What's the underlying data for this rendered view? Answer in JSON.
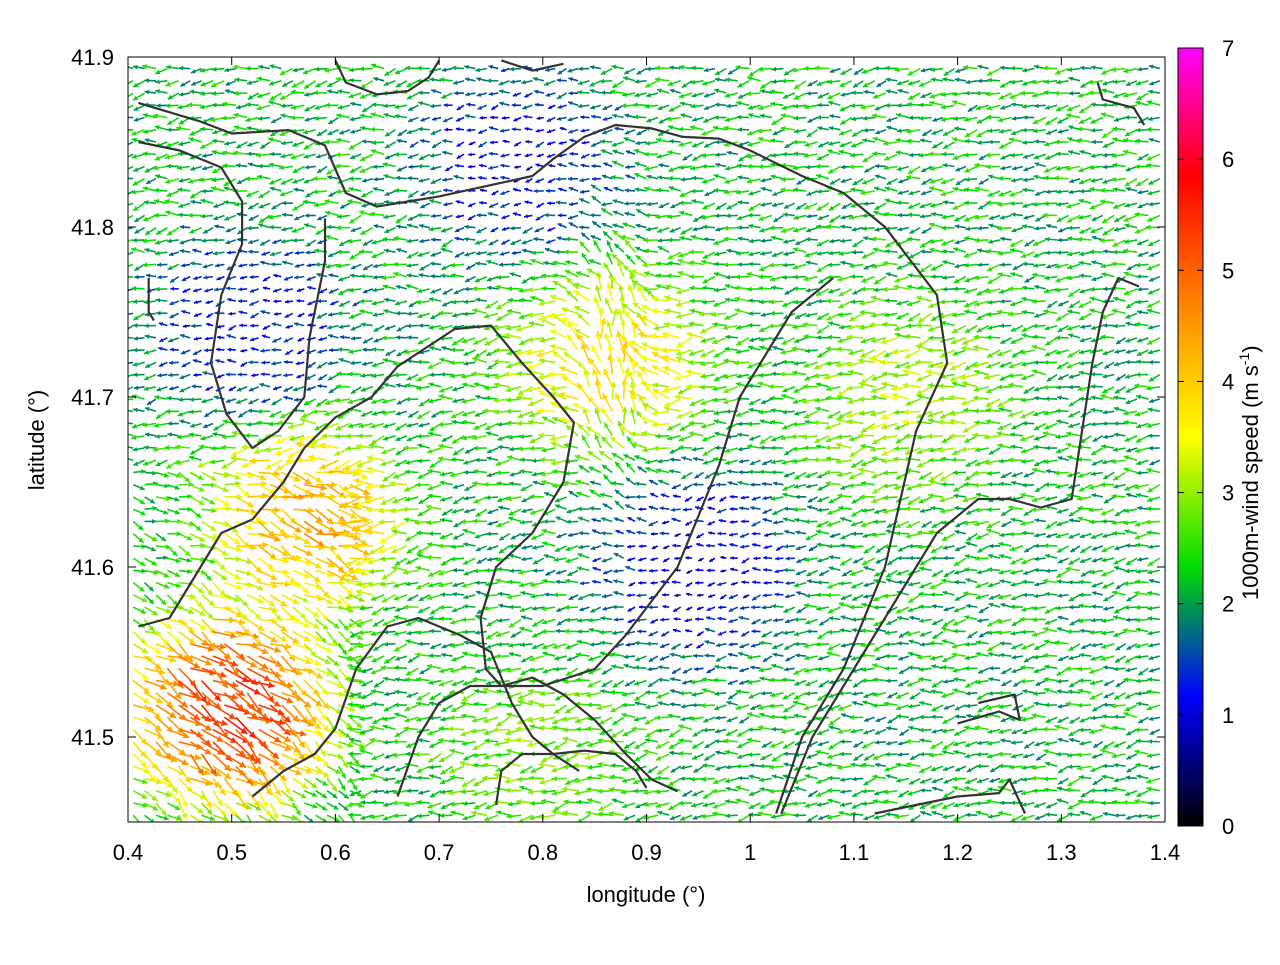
{
  "chart_data": {
    "type": "quiver",
    "xlabel": "longitude (°)",
    "ylabel": "latitude (°)",
    "xlim": [
      0.4,
      1.4
    ],
    "ylim": [
      41.45,
      41.9
    ],
    "x_ticks": [
      0.4,
      0.5,
      0.6,
      0.7,
      0.8,
      0.9,
      1.0,
      1.1,
      1.2,
      1.3,
      1.4
    ],
    "x_tick_labels": [
      "0.4",
      "0.5",
      "0.6",
      "0.7",
      "0.8",
      "0.9",
      "1",
      "1.1",
      "1.2",
      "1.3",
      "1.4"
    ],
    "y_ticks": [
      41.5,
      41.6,
      41.7,
      41.8,
      41.9
    ],
    "y_tick_labels": [
      "41.5",
      "41.6",
      "41.7",
      "41.8",
      "41.9"
    ],
    "colorbar": {
      "label": "1000m-wind speed (m s",
      "label_superscript": "-1",
      "label_close": ")",
      "range": [
        0,
        7
      ],
      "ticks": [
        0,
        1,
        2,
        3,
        4,
        5,
        6,
        7
      ],
      "tick_labels": [
        "0",
        "1",
        "2",
        "3",
        "4",
        "5",
        "6",
        "7"
      ],
      "palette": [
        "#000000",
        "#0000ff",
        "#00dd00",
        "#ffff00",
        "#ff8800",
        "#ff0000",
        "#ff00ff"
      ]
    },
    "grid": false,
    "legend": "none",
    "vector_field": {
      "grid_spacing_lon": 0.011,
      "grid_spacing_lat": 0.0072,
      "dominant_direction": "from east to west (westward)",
      "regions": [
        {
          "description": "weak winds over the northern valley",
          "center": [
            0.78,
            41.84
          ],
          "speed_ms": 0.8
        },
        {
          "description": "weak winds in the west basin",
          "center": [
            0.52,
            41.74
          ],
          "speed_ms": 0.8
        },
        {
          "description": "weak winds near the center",
          "center": [
            0.95,
            41.6
          ],
          "speed_ms": 0.6
        },
        {
          "description": "northward flow on the central ridge",
          "center": [
            0.87,
            41.72
          ],
          "speed_ms": 4.2
        },
        {
          "description": "strong south-westerly flow",
          "center": [
            0.57,
            41.63
          ],
          "speed_ms": 5.0
        },
        {
          "description": "strongest winds in the south-west",
          "center": [
            0.49,
            41.52
          ],
          "speed_ms": 6.5
        },
        {
          "description": "moderate flow on the eastern slopes",
          "center": [
            1.16,
            41.7
          ],
          "speed_ms": 3.4
        },
        {
          "description": "westward flow to the south",
          "center": [
            0.8,
            41.49
          ],
          "speed_ms": 3.0
        }
      ],
      "background_speed_ms": 2.2
    },
    "contours": [
      [
        [
          0.41,
          41.873
        ],
        [
          0.47,
          41.862
        ],
        [
          0.5,
          41.855
        ],
        [
          0.555,
          41.857
        ],
        [
          0.59,
          41.848
        ],
        [
          0.61,
          41.82
        ],
        [
          0.64,
          41.812
        ],
        [
          0.67,
          41.815
        ],
        [
          0.7,
          41.818
        ],
        [
          0.73,
          41.822
        ],
        [
          0.76,
          41.826
        ],
        [
          0.79,
          41.83
        ],
        [
          0.81,
          41.84
        ],
        [
          0.84,
          41.853
        ],
        [
          0.87,
          41.86
        ],
        [
          0.905,
          41.858
        ],
        [
          0.935,
          41.853
        ],
        [
          0.97,
          41.852
        ],
        [
          1.0,
          41.845
        ],
        [
          1.05,
          41.83
        ],
        [
          1.09,
          41.82
        ],
        [
          1.13,
          41.8
        ],
        [
          1.155,
          41.78
        ],
        [
          1.18,
          41.76
        ],
        [
          1.19,
          41.72
        ],
        [
          1.16,
          41.68
        ],
        [
          1.13,
          41.6
        ],
        [
          1.09,
          41.54
        ],
        [
          1.05,
          41.5
        ],
        [
          1.025,
          41.455
        ]
      ],
      [
        [
          0.41,
          41.85
        ],
        [
          0.45,
          41.845
        ],
        [
          0.49,
          41.835
        ],
        [
          0.51,
          41.815
        ],
        [
          0.51,
          41.79
        ],
        [
          0.49,
          41.76
        ],
        [
          0.48,
          41.72
        ],
        [
          0.495,
          41.69
        ],
        [
          0.52,
          41.67
        ],
        [
          0.545,
          41.68
        ],
        [
          0.57,
          41.7
        ],
        [
          0.575,
          41.735
        ],
        [
          0.59,
          41.78
        ],
        [
          0.59,
          41.805
        ]
      ],
      [
        [
          0.41,
          41.565
        ],
        [
          0.44,
          41.57
        ],
        [
          0.47,
          41.6
        ],
        [
          0.49,
          41.62
        ],
        [
          0.52,
          41.628
        ],
        [
          0.55,
          41.65
        ],
        [
          0.57,
          41.67
        ],
        [
          0.6,
          41.688
        ],
        [
          0.635,
          41.7
        ],
        [
          0.66,
          41.718
        ],
        [
          0.69,
          41.73
        ],
        [
          0.715,
          41.74
        ],
        [
          0.75,
          41.742
        ],
        [
          0.78,
          41.72
        ],
        [
          0.81,
          41.7
        ],
        [
          0.83,
          41.685
        ],
        [
          0.82,
          41.65
        ],
        [
          0.79,
          41.62
        ],
        [
          0.755,
          41.6
        ],
        [
          0.74,
          41.57
        ],
        [
          0.745,
          41.54
        ],
        [
          0.76,
          41.53
        ],
        [
          0.79,
          41.535
        ],
        [
          0.82,
          41.525
        ],
        [
          0.85,
          41.51
        ],
        [
          0.88,
          41.49
        ],
        [
          0.905,
          41.475
        ],
        [
          0.93,
          41.468
        ]
      ],
      [
        [
          0.52,
          41.465
        ],
        [
          0.55,
          41.48
        ],
        [
          0.58,
          41.49
        ],
        [
          0.6,
          41.505
        ],
        [
          0.62,
          41.54
        ],
        [
          0.65,
          41.565
        ],
        [
          0.68,
          41.57
        ],
        [
          0.72,
          41.56
        ],
        [
          0.75,
          41.55
        ],
        [
          0.77,
          41.52
        ],
        [
          0.79,
          41.5
        ],
        [
          0.81,
          41.49
        ],
        [
          0.835,
          41.48
        ]
      ],
      [
        [
          0.66,
          41.465
        ],
        [
          0.68,
          41.5
        ],
        [
          0.7,
          41.52
        ],
        [
          0.73,
          41.53
        ],
        [
          0.76,
          41.53
        ],
        [
          0.8,
          41.53
        ],
        [
          0.85,
          41.54
        ],
        [
          0.88,
          41.56
        ],
        [
          0.905,
          41.58
        ],
        [
          0.93,
          41.6
        ],
        [
          0.95,
          41.63
        ],
        [
          0.97,
          41.66
        ],
        [
          0.99,
          41.7
        ],
        [
          1.02,
          41.73
        ],
        [
          1.04,
          41.75
        ],
        [
          1.06,
          41.76
        ],
        [
          1.08,
          41.77
        ]
      ],
      [
        [
          1.03,
          41.455
        ],
        [
          1.06,
          41.5
        ],
        [
          1.09,
          41.53
        ],
        [
          1.12,
          41.56
        ],
        [
          1.15,
          41.59
        ],
        [
          1.18,
          41.62
        ],
        [
          1.22,
          41.64
        ],
        [
          1.25,
          41.64
        ],
        [
          1.28,
          41.635
        ],
        [
          1.31,
          41.64
        ],
        [
          1.32,
          41.68
        ],
        [
          1.33,
          41.72
        ],
        [
          1.34,
          41.75
        ],
        [
          1.355,
          41.77
        ],
        [
          1.375,
          41.765
        ]
      ],
      [
        [
          0.755,
          41.46
        ],
        [
          0.76,
          41.48
        ],
        [
          0.78,
          41.49
        ],
        [
          0.81,
          41.49
        ],
        [
          0.84,
          41.492
        ],
        [
          0.87,
          41.49
        ],
        [
          0.89,
          41.48
        ],
        [
          0.9,
          41.47
        ]
      ],
      [
        [
          1.12,
          41.455
        ],
        [
          1.16,
          41.46
        ],
        [
          1.2,
          41.465
        ],
        [
          1.24,
          41.467
        ],
        [
          1.25,
          41.475
        ],
        [
          1.265,
          41.455
        ]
      ],
      [
        [
          1.335,
          41.885
        ],
        [
          1.34,
          41.875
        ],
        [
          1.37,
          41.87
        ],
        [
          1.38,
          41.86
        ]
      ],
      [
        [
          1.2,
          41.508
        ],
        [
          1.24,
          41.515
        ],
        [
          1.26,
          41.51
        ],
        [
          1.255,
          41.525
        ],
        [
          1.22,
          41.52
        ]
      ],
      [
        [
          0.6,
          41.898
        ],
        [
          0.61,
          41.885
        ],
        [
          0.64,
          41.878
        ],
        [
          0.67,
          41.88
        ],
        [
          0.69,
          41.888
        ],
        [
          0.7,
          41.898
        ]
      ],
      [
        [
          0.76,
          41.898
        ],
        [
          0.79,
          41.892
        ],
        [
          0.82,
          41.896
        ]
      ],
      [
        [
          0.42,
          41.77
        ],
        [
          0.42,
          41.75
        ],
        [
          0.425,
          41.745
        ]
      ]
    ]
  }
}
